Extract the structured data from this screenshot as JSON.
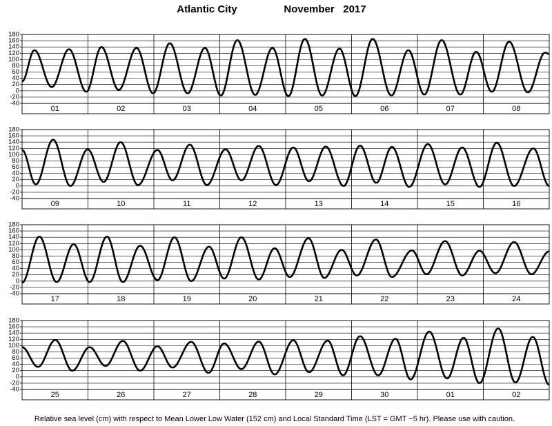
{
  "header": {
    "location": "Atlantic City",
    "month": "November   2017"
  },
  "footer": "Relative sea level (cm) with respect to Mean Lower Low Water (152 cm) and Local Standard Time (LST = GMT −5 hr). Please use with caution.",
  "chart_data": [
    {
      "type": "line",
      "categories": [
        "01",
        "02",
        "03",
        "04",
        "05",
        "06",
        "07",
        "08"
      ],
      "series": [
        {
          "color": "#000000",
          "x": [
            0,
            4.5,
            10.8,
            17.1,
            23.4,
            28.9,
            35.2,
            41.7,
            47.7,
            53.8,
            60.3,
            66.6,
            72.4,
            78.4,
            84.9,
            91.2,
            97.0,
            103.0,
            109.3,
            115.6,
            121.4,
            127.7,
            134.5,
            140.7,
            146.5,
            152.8,
            159.6,
            165.4,
            171.1,
            177.4,
            184.2,
            190.5,
            192
          ],
          "values": [
            30,
            130,
            12,
            133,
            -3,
            140,
            3,
            137,
            -8,
            152,
            -8,
            137,
            -15,
            162,
            -13,
            137,
            -17,
            166,
            -15,
            135,
            -17,
            166,
            -15,
            130,
            -12,
            162,
            -12,
            125,
            -3,
            157,
            -5,
            122,
            118
          ]
        }
      ],
      "xlim": [
        0,
        192
      ],
      "ylim": [
        -40,
        180
      ],
      "yticks": [
        -40,
        -20,
        0,
        20,
        40,
        60,
        80,
        100,
        120,
        140,
        160,
        180
      ],
      "grid": true
    },
    {
      "type": "line",
      "categories": [
        "09",
        "10",
        "11",
        "12",
        "13",
        "14",
        "15",
        "16"
      ],
      "series": [
        {
          "color": "#000000",
          "x": [
            0,
            5.0,
            11.3,
            17.6,
            23.9,
            29.7,
            35.9,
            42.2,
            49.3,
            54.8,
            61.1,
            67.3,
            74.1,
            79.9,
            86.2,
            92.5,
            98.8,
            104.5,
            110.6,
            117.1,
            123.1,
            129.0,
            134.7,
            141.0,
            147.8,
            154.1,
            160.3,
            166.6,
            172.9,
            179.2,
            186.2,
            192
          ],
          "values": [
            115,
            5,
            148,
            0,
            117,
            13,
            140,
            3,
            115,
            18,
            132,
            3,
            117,
            18,
            128,
            3,
            123,
            15,
            126,
            0,
            129,
            10,
            125,
            -3,
            134,
            5,
            123,
            -3,
            138,
            0,
            120,
            0
          ]
        }
      ],
      "xlim": [
        0,
        192
      ],
      "ylim": [
        -40,
        180
      ],
      "yticks": [
        -40,
        -20,
        0,
        20,
        40,
        60,
        80,
        100,
        120,
        140,
        160,
        180
      ],
      "grid": true
    },
    {
      "type": "line",
      "categories": [
        "17",
        "18",
        "19",
        "20",
        "21",
        "22",
        "23",
        "24"
      ],
      "series": [
        {
          "color": "#000000",
          "x": [
            0,
            6.3,
            12.6,
            18.8,
            24.6,
            30.9,
            36.7,
            43.0,
            49.3,
            55.5,
            61.6,
            68.1,
            73.6,
            79.9,
            86.2,
            92.0,
            97.5,
            104.3,
            110.1,
            116.4,
            121.9,
            128.9,
            134.7,
            142.0,
            147.3,
            154.1,
            160.3,
            166.6,
            172.4,
            179.2,
            185.5,
            192
          ],
          "values": [
            -5,
            142,
            -3,
            118,
            -3,
            142,
            -3,
            113,
            3,
            140,
            0,
            110,
            8,
            140,
            5,
            105,
            13,
            137,
            10,
            100,
            18,
            133,
            13,
            98,
            22,
            128,
            18,
            97,
            25,
            125,
            22,
            95
          ]
        }
      ],
      "xlim": [
        0,
        192
      ],
      "ylim": [
        -40,
        180
      ],
      "yticks": [
        -40,
        -20,
        0,
        20,
        40,
        60,
        80,
        100,
        120,
        140,
        160,
        180
      ],
      "grid": true
    },
    {
      "type": "line",
      "categories": [
        "25",
        "26",
        "27",
        "28",
        "29",
        "30",
        "01",
        "02"
      ],
      "series": [
        {
          "color": "#000000",
          "x": [
            0,
            5.8,
            12.1,
            18.3,
            24.6,
            30.4,
            36.7,
            43.0,
            49.3,
            54.8,
            61.6,
            67.9,
            73.6,
            79.9,
            86.2,
            92.0,
            98.8,
            104.5,
            111.3,
            116.9,
            123.1,
            129.7,
            136.0,
            141.5,
            148.3,
            154.8,
            160.8,
            166.6,
            173.4,
            179.7,
            186.0,
            192
          ],
          "values": [
            95,
            32,
            118,
            20,
            95,
            35,
            115,
            20,
            98,
            30,
            112,
            13,
            107,
            25,
            113,
            8,
            117,
            15,
            116,
            5,
            130,
            5,
            122,
            -8,
            145,
            -5,
            125,
            -20,
            155,
            -18,
            128,
            -25
          ]
        }
      ],
      "xlim": [
        0,
        192
      ],
      "ylim": [
        -40,
        180
      ],
      "yticks": [
        -40,
        -20,
        0,
        20,
        40,
        60,
        80,
        100,
        120,
        140,
        160,
        180
      ],
      "grid": true
    }
  ]
}
